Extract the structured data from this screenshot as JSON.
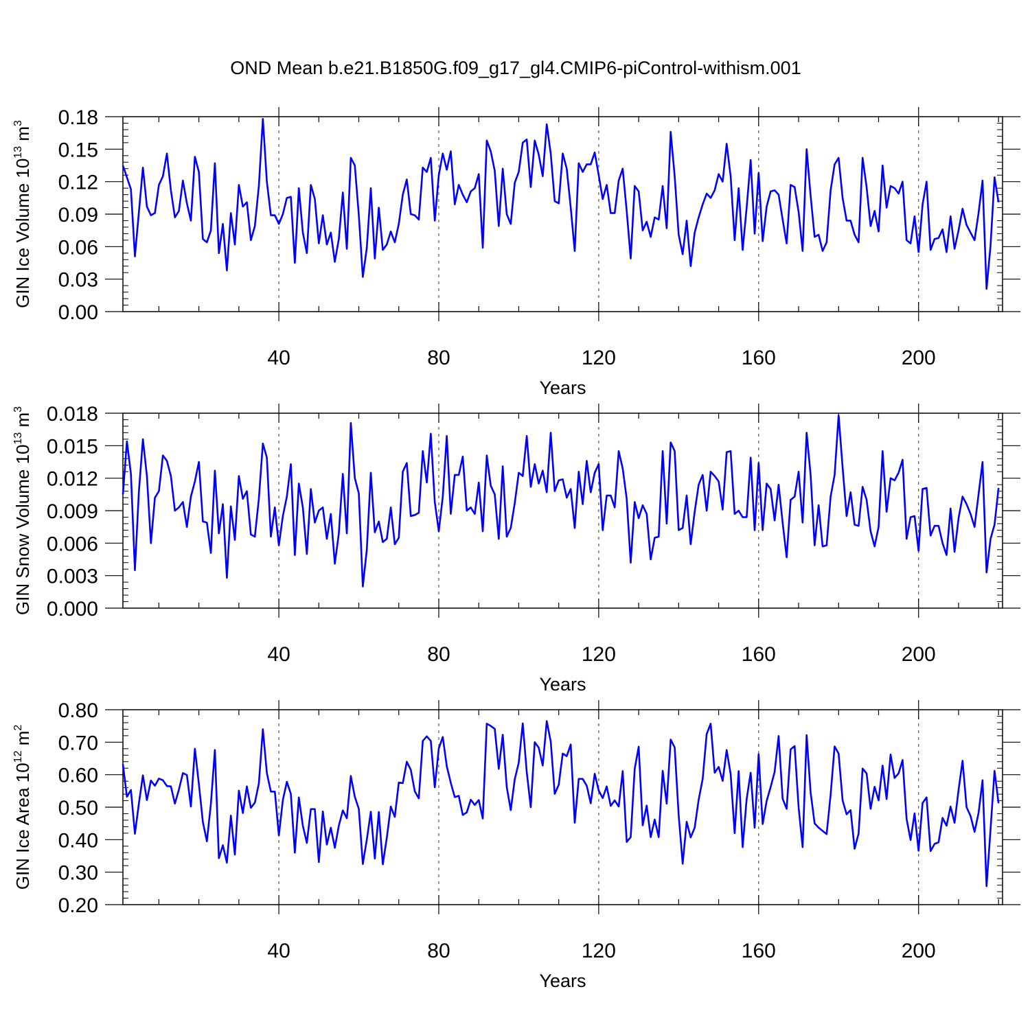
{
  "title": "OND Mean b.e21.B1850G.f09_g17_gl4.CMIP6-piControl-withism.001",
  "line_color": "#0000ff",
  "chart_data": [
    {
      "type": "line",
      "title": "OND Mean b.e21.B1850G.f09_g17_gl4.CMIP6-piControl-withism.001",
      "xlabel": "Years",
      "ylabel_main": "GIN Ice Volume 10",
      "ylabel_sup": "13",
      "ylabel_unit": " m",
      "ylabel_unit_sup": "3",
      "xlim": [
        1,
        221
      ],
      "ylim": [
        0.0,
        0.18
      ],
      "x_ticks": [
        40,
        80,
        120,
        160,
        200
      ],
      "x_tick_labels": [
        "40",
        "80",
        "120",
        "160",
        "200"
      ],
      "y_ticks": [
        0.0,
        0.03,
        0.06,
        0.09,
        0.12,
        0.15,
        0.18
      ],
      "y_tick_labels": [
        "0.00",
        "0.03",
        "0.06",
        "0.09",
        "0.12",
        "0.15",
        "0.18"
      ],
      "grid": "vertical dashed at major x ticks",
      "series": [
        {
          "name": "GIN Ice Volume",
          "values": [
            0.135,
            0.124,
            0.113,
            0.051,
            0.092,
            0.133,
            0.097,
            0.089,
            0.091,
            0.117,
            0.125,
            0.146,
            0.112,
            0.087,
            0.093,
            0.121,
            0.1,
            0.084,
            0.143,
            0.129,
            0.067,
            0.064,
            0.075,
            0.137,
            0.054,
            0.081,
            0.038,
            0.091,
            0.062,
            0.117,
            0.097,
            0.101,
            0.066,
            0.079,
            0.116,
            0.178,
            0.12,
            0.089,
            0.089,
            0.081,
            0.09,
            0.105,
            0.106,
            0.045,
            0.114,
            0.073,
            0.054,
            0.117,
            0.104,
            0.063,
            0.089,
            0.062,
            0.073,
            0.046,
            0.067,
            0.11,
            0.058,
            0.142,
            0.135,
            0.089,
            0.032,
            0.059,
            0.114,
            0.049,
            0.096,
            0.057,
            0.062,
            0.074,
            0.064,
            0.081,
            0.108,
            0.122,
            0.09,
            0.089,
            0.085,
            0.133,
            0.129,
            0.142,
            0.084,
            0.126,
            0.146,
            0.131,
            0.148,
            0.099,
            0.117,
            0.108,
            0.101,
            0.111,
            0.114,
            0.127,
            0.059,
            0.158,
            0.148,
            0.13,
            0.079,
            0.132,
            0.09,
            0.081,
            0.119,
            0.129,
            0.156,
            0.159,
            0.115,
            0.158,
            0.145,
            0.125,
            0.173,
            0.146,
            0.102,
            0.1,
            0.146,
            0.132,
            0.096,
            0.056,
            0.137,
            0.129,
            0.136,
            0.136,
            0.147,
            0.126,
            0.104,
            0.117,
            0.091,
            0.091,
            0.121,
            0.132,
            0.093,
            0.049,
            0.116,
            0.111,
            0.075,
            0.083,
            0.069,
            0.087,
            0.085,
            0.116,
            0.077,
            0.166,
            0.125,
            0.071,
            0.053,
            0.084,
            0.042,
            0.073,
            0.087,
            0.099,
            0.109,
            0.105,
            0.112,
            0.127,
            0.12,
            0.155,
            0.125,
            0.066,
            0.114,
            0.057,
            0.096,
            0.14,
            0.072,
            0.128,
            0.065,
            0.097,
            0.111,
            0.112,
            0.108,
            0.085,
            0.063,
            0.117,
            0.115,
            0.092,
            0.056,
            0.15,
            0.107,
            0.069,
            0.071,
            0.056,
            0.064,
            0.112,
            0.136,
            0.142,
            0.105,
            0.084,
            0.084,
            0.071,
            0.064,
            0.142,
            0.115,
            0.079,
            0.093,
            0.074,
            0.135,
            0.096,
            0.116,
            0.114,
            0.109,
            0.12,
            0.066,
            0.063,
            0.088,
            0.055,
            0.099,
            0.12,
            0.057,
            0.067,
            0.068,
            0.076,
            0.055,
            0.088,
            0.058,
            0.075,
            0.095,
            0.08,
            0.073,
            0.066,
            0.091,
            0.121,
            0.021,
            0.061,
            0.124,
            0.101
          ]
        }
      ]
    },
    {
      "type": "line",
      "xlabel": "Years",
      "ylabel_main": "GIN Snow Volume 10",
      "ylabel_sup": "13",
      "ylabel_unit": " m",
      "ylabel_unit_sup": "3",
      "xlim": [
        1,
        221
      ],
      "ylim": [
        0.0,
        0.018
      ],
      "x_ticks": [
        40,
        80,
        120,
        160,
        200
      ],
      "x_tick_labels": [
        "40",
        "80",
        "120",
        "160",
        "200"
      ],
      "y_ticks": [
        0.0,
        0.003,
        0.006,
        0.009,
        0.012,
        0.015,
        0.018
      ],
      "y_tick_labels": [
        "0.000",
        "0.003",
        "0.006",
        "0.009",
        "0.012",
        "0.015",
        "0.018"
      ],
      "grid": "vertical dashed at major x ticks",
      "series": [
        {
          "name": "GIN Snow Volume",
          "values": [
            0.0105,
            0.0154,
            0.0124,
            0.0035,
            0.0108,
            0.0156,
            0.0122,
            0.006,
            0.0102,
            0.0108,
            0.0141,
            0.0136,
            0.0122,
            0.009,
            0.0093,
            0.0098,
            0.0075,
            0.0103,
            0.0117,
            0.0135,
            0.008,
            0.0079,
            0.0051,
            0.0127,
            0.0069,
            0.0096,
            0.0028,
            0.0094,
            0.0063,
            0.0122,
            0.0101,
            0.0108,
            0.0068,
            0.0066,
            0.0101,
            0.0152,
            0.0139,
            0.0066,
            0.0093,
            0.0058,
            0.0085,
            0.0103,
            0.0133,
            0.0049,
            0.0115,
            0.0093,
            0.005,
            0.011,
            0.0079,
            0.009,
            0.0093,
            0.0064,
            0.0087,
            0.0041,
            0.0069,
            0.0124,
            0.0069,
            0.0171,
            0.012,
            0.0106,
            0.002,
            0.0054,
            0.0125,
            0.007,
            0.008,
            0.0061,
            0.0064,
            0.0093,
            0.0059,
            0.0065,
            0.0126,
            0.0134,
            0.0085,
            0.0086,
            0.0088,
            0.0145,
            0.0116,
            0.0161,
            0.0098,
            0.0071,
            0.0103,
            0.0159,
            0.0087,
            0.0123,
            0.0123,
            0.014,
            0.009,
            0.0093,
            0.0087,
            0.0116,
            0.0071,
            0.0141,
            0.0113,
            0.0105,
            0.0064,
            0.0131,
            0.0066,
            0.0074,
            0.0097,
            0.0125,
            0.0122,
            0.0159,
            0.0112,
            0.0133,
            0.0115,
            0.0127,
            0.0107,
            0.0162,
            0.0108,
            0.0118,
            0.0119,
            0.0102,
            0.011,
            0.0074,
            0.0126,
            0.0096,
            0.0136,
            0.0107,
            0.0125,
            0.0133,
            0.0072,
            0.0104,
            0.0104,
            0.0093,
            0.0145,
            0.0129,
            0.0101,
            0.0042,
            0.0098,
            0.0083,
            0.0095,
            0.0087,
            0.0045,
            0.0065,
            0.0066,
            0.0145,
            0.0078,
            0.0153,
            0.0145,
            0.0072,
            0.0074,
            0.0104,
            0.0059,
            0.0089,
            0.0114,
            0.0123,
            0.009,
            0.0126,
            0.0122,
            0.0117,
            0.0091,
            0.0144,
            0.0145,
            0.0087,
            0.009,
            0.0084,
            0.0084,
            0.0139,
            0.0072,
            0.0134,
            0.0072,
            0.0115,
            0.011,
            0.0081,
            0.0114,
            0.0079,
            0.0047,
            0.01,
            0.0103,
            0.0126,
            0.0079,
            0.0162,
            0.0123,
            0.0058,
            0.0095,
            0.0057,
            0.0058,
            0.0103,
            0.0123,
            0.0178,
            0.013,
            0.0085,
            0.0107,
            0.0077,
            0.0076,
            0.0112,
            0.01,
            0.0071,
            0.0057,
            0.0075,
            0.0145,
            0.0089,
            0.012,
            0.0118,
            0.0125,
            0.0137,
            0.0064,
            0.0084,
            0.0085,
            0.0053,
            0.011,
            0.0111,
            0.0067,
            0.0076,
            0.0076,
            0.006,
            0.0049,
            0.0092,
            0.0052,
            0.0083,
            0.0103,
            0.0096,
            0.0087,
            0.0075,
            0.0105,
            0.0135,
            0.0033,
            0.0064,
            0.0077,
            0.0111
          ]
        }
      ]
    },
    {
      "type": "line",
      "xlabel": "Years",
      "ylabel_main": "GIN Ice Area 10",
      "ylabel_sup": "12",
      "ylabel_unit": " m",
      "ylabel_unit_sup": "2",
      "xlim": [
        1,
        221
      ],
      "ylim": [
        0.2,
        0.8
      ],
      "x_ticks": [
        40,
        80,
        120,
        160,
        200
      ],
      "x_tick_labels": [
        "40",
        "80",
        "120",
        "160",
        "200"
      ],
      "y_ticks": [
        0.2,
        0.3,
        0.4,
        0.5,
        0.6,
        0.7,
        0.8
      ],
      "y_tick_labels": [
        "0.20",
        "0.30",
        "0.40",
        "0.50",
        "0.60",
        "0.70",
        "0.80"
      ],
      "grid": "vertical dashed at major x ticks",
      "series": [
        {
          "name": "GIN Ice Area",
          "values": [
            0.632,
            0.532,
            0.553,
            0.418,
            0.512,
            0.598,
            0.522,
            0.582,
            0.566,
            0.588,
            0.583,
            0.565,
            0.564,
            0.511,
            0.554,
            0.605,
            0.599,
            0.502,
            0.68,
            0.571,
            0.454,
            0.395,
            0.51,
            0.676,
            0.343,
            0.383,
            0.329,
            0.474,
            0.354,
            0.551,
            0.482,
            0.564,
            0.498,
            0.514,
            0.573,
            0.74,
            0.605,
            0.548,
            0.548,
            0.413,
            0.522,
            0.578,
            0.541,
            0.36,
            0.53,
            0.443,
            0.39,
            0.494,
            0.494,
            0.331,
            0.487,
            0.385,
            0.437,
            0.375,
            0.443,
            0.49,
            0.466,
            0.596,
            0.532,
            0.495,
            0.325,
            0.4,
            0.486,
            0.342,
            0.485,
            0.324,
            0.406,
            0.502,
            0.47,
            0.576,
            0.574,
            0.64,
            0.615,
            0.549,
            0.527,
            0.704,
            0.718,
            0.704,
            0.561,
            0.681,
            0.716,
            0.626,
            0.575,
            0.531,
            0.535,
            0.476,
            0.484,
            0.523,
            0.507,
            0.522,
            0.465,
            0.757,
            0.75,
            0.741,
            0.618,
            0.723,
            0.562,
            0.491,
            0.586,
            0.637,
            0.758,
            0.608,
            0.5,
            0.7,
            0.683,
            0.628,
            0.765,
            0.702,
            0.541,
            0.569,
            0.665,
            0.657,
            0.693,
            0.452,
            0.587,
            0.587,
            0.566,
            0.512,
            0.603,
            0.551,
            0.528,
            0.564,
            0.504,
            0.521,
            0.502,
            0.611,
            0.393,
            0.408,
            0.618,
            0.686,
            0.444,
            0.505,
            0.408,
            0.462,
            0.408,
            0.612,
            0.511,
            0.708,
            0.684,
            0.475,
            0.326,
            0.455,
            0.407,
            0.437,
            0.523,
            0.587,
            0.725,
            0.757,
            0.606,
            0.624,
            0.581,
            0.676,
            0.602,
            0.42,
            0.611,
            0.377,
            0.525,
            0.606,
            0.437,
            0.663,
            0.448,
            0.519,
            0.562,
            0.609,
            0.719,
            0.526,
            0.495,
            0.678,
            0.688,
            0.499,
            0.377,
            0.722,
            0.545,
            0.45,
            0.437,
            0.427,
            0.417,
            0.538,
            0.687,
            0.665,
            0.521,
            0.478,
            0.491,
            0.372,
            0.419,
            0.619,
            0.604,
            0.495,
            0.563,
            0.521,
            0.628,
            0.525,
            0.662,
            0.59,
            0.604,
            0.645,
            0.464,
            0.399,
            0.481,
            0.366,
            0.513,
            0.53,
            0.365,
            0.387,
            0.392,
            0.467,
            0.443,
            0.502,
            0.452,
            0.553,
            0.643,
            0.5,
            0.473,
            0.424,
            0.482,
            0.583,
            0.257,
            0.432,
            0.612,
            0.512
          ]
        }
      ]
    }
  ]
}
